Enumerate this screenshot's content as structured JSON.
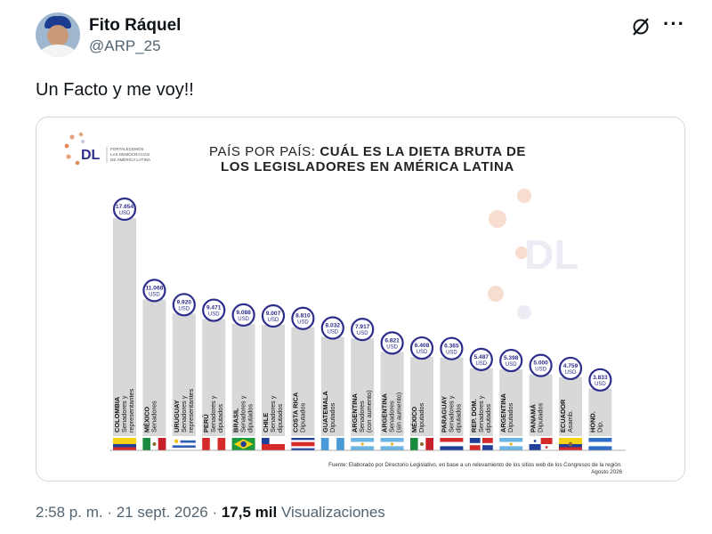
{
  "tweet": {
    "author_name": "Fito Ráquel",
    "author_handle": "@ARP_25",
    "text": "Un Facto y me voy!!",
    "time": "2:58 p. m. · 21 sept. 2026 · ",
    "views_count": "17,5 mil",
    "views_label": " Visualizaciones"
  },
  "icons": [
    "grok-icon",
    "more-options-icon",
    "avatar"
  ],
  "infographic": {
    "logo_text": "DL",
    "logo_tagline": [
      "FORTALECEMOS",
      "LAS DEMOCRACIAS",
      "DE AMÉRICA LATINA"
    ],
    "title_line1_light": "PAÍS POR PAÍS: ",
    "title_line1_bold": "CUÁL ES LA DIETA BRUTA DE",
    "title_line2": "LOS LEGISLADORES EN AMÉRICA LATINA",
    "watermark": "DL",
    "source": "Fuente: Elaborado por Directorio Legislativo, en base a un relevamiento de los sitios web de los Congresos de la región.",
    "date": "Agosto 2026"
  },
  "colors": {
    "accent": "#2d2d8c",
    "bar": "#d8d8d8",
    "dots": "#e8a27a"
  },
  "chart_data": {
    "type": "bar",
    "unit": "USD",
    "categories": [
      {
        "country": "COLOMBIA",
        "sub": "Senadores y representantes"
      },
      {
        "country": "MÉXICO",
        "sub": "Senadores"
      },
      {
        "country": "URUGUAY",
        "sub": "Senadores y representantes"
      },
      {
        "country": "PERÚ",
        "sub": "Senadores y diputados"
      },
      {
        "country": "BRASIL",
        "sub": "Senadores y diputados"
      },
      {
        "country": "CHILE",
        "sub": "Senadores y diputados"
      },
      {
        "country": "COSTA RICA",
        "sub": "Diputados"
      },
      {
        "country": "GUATEMALA",
        "sub": "Diputados"
      },
      {
        "country": "ARGENTINA",
        "sub": "Senadores (con aumento)"
      },
      {
        "country": "ARGENTINA",
        "sub": "Senadores (sin aumento)"
      },
      {
        "country": "MÉXICO",
        "sub": "Diputados"
      },
      {
        "country": "PARAGUAY",
        "sub": "Senadores y diputados"
      },
      {
        "country": "REP. DOM.",
        "sub": "Senadores y diputados"
      },
      {
        "country": "ARGENTINA",
        "sub": "Diputados"
      },
      {
        "country": "PANAMÁ",
        "sub": "Diputados"
      },
      {
        "country": "ECUADOR",
        "sub": "Asamb."
      },
      {
        "country": "HOND.",
        "sub": "Dip."
      }
    ],
    "values": [
      17654,
      11068,
      9920,
      9471,
      9088,
      9007,
      8810,
      8032,
      7917,
      6821,
      6408,
      6365,
      5487,
      5398,
      5000,
      4759,
      3833
    ],
    "labels": [
      "17.654",
      "11.068",
      "9.920",
      "9.471",
      "9.088",
      "9.007",
      "8.810",
      "8.032",
      "7.917",
      "6.821",
      "6.408",
      "6.365",
      "5.487",
      "5.398",
      "5.000",
      "4.759",
      "3.833"
    ],
    "flags": [
      "colombia",
      "mexico",
      "uruguay",
      "peru",
      "brasil",
      "chile",
      "costarica",
      "guatemala",
      "argentina",
      "argentina",
      "mexico",
      "paraguay",
      "repdom",
      "argentina",
      "panama",
      "ecuador",
      "honduras"
    ]
  }
}
